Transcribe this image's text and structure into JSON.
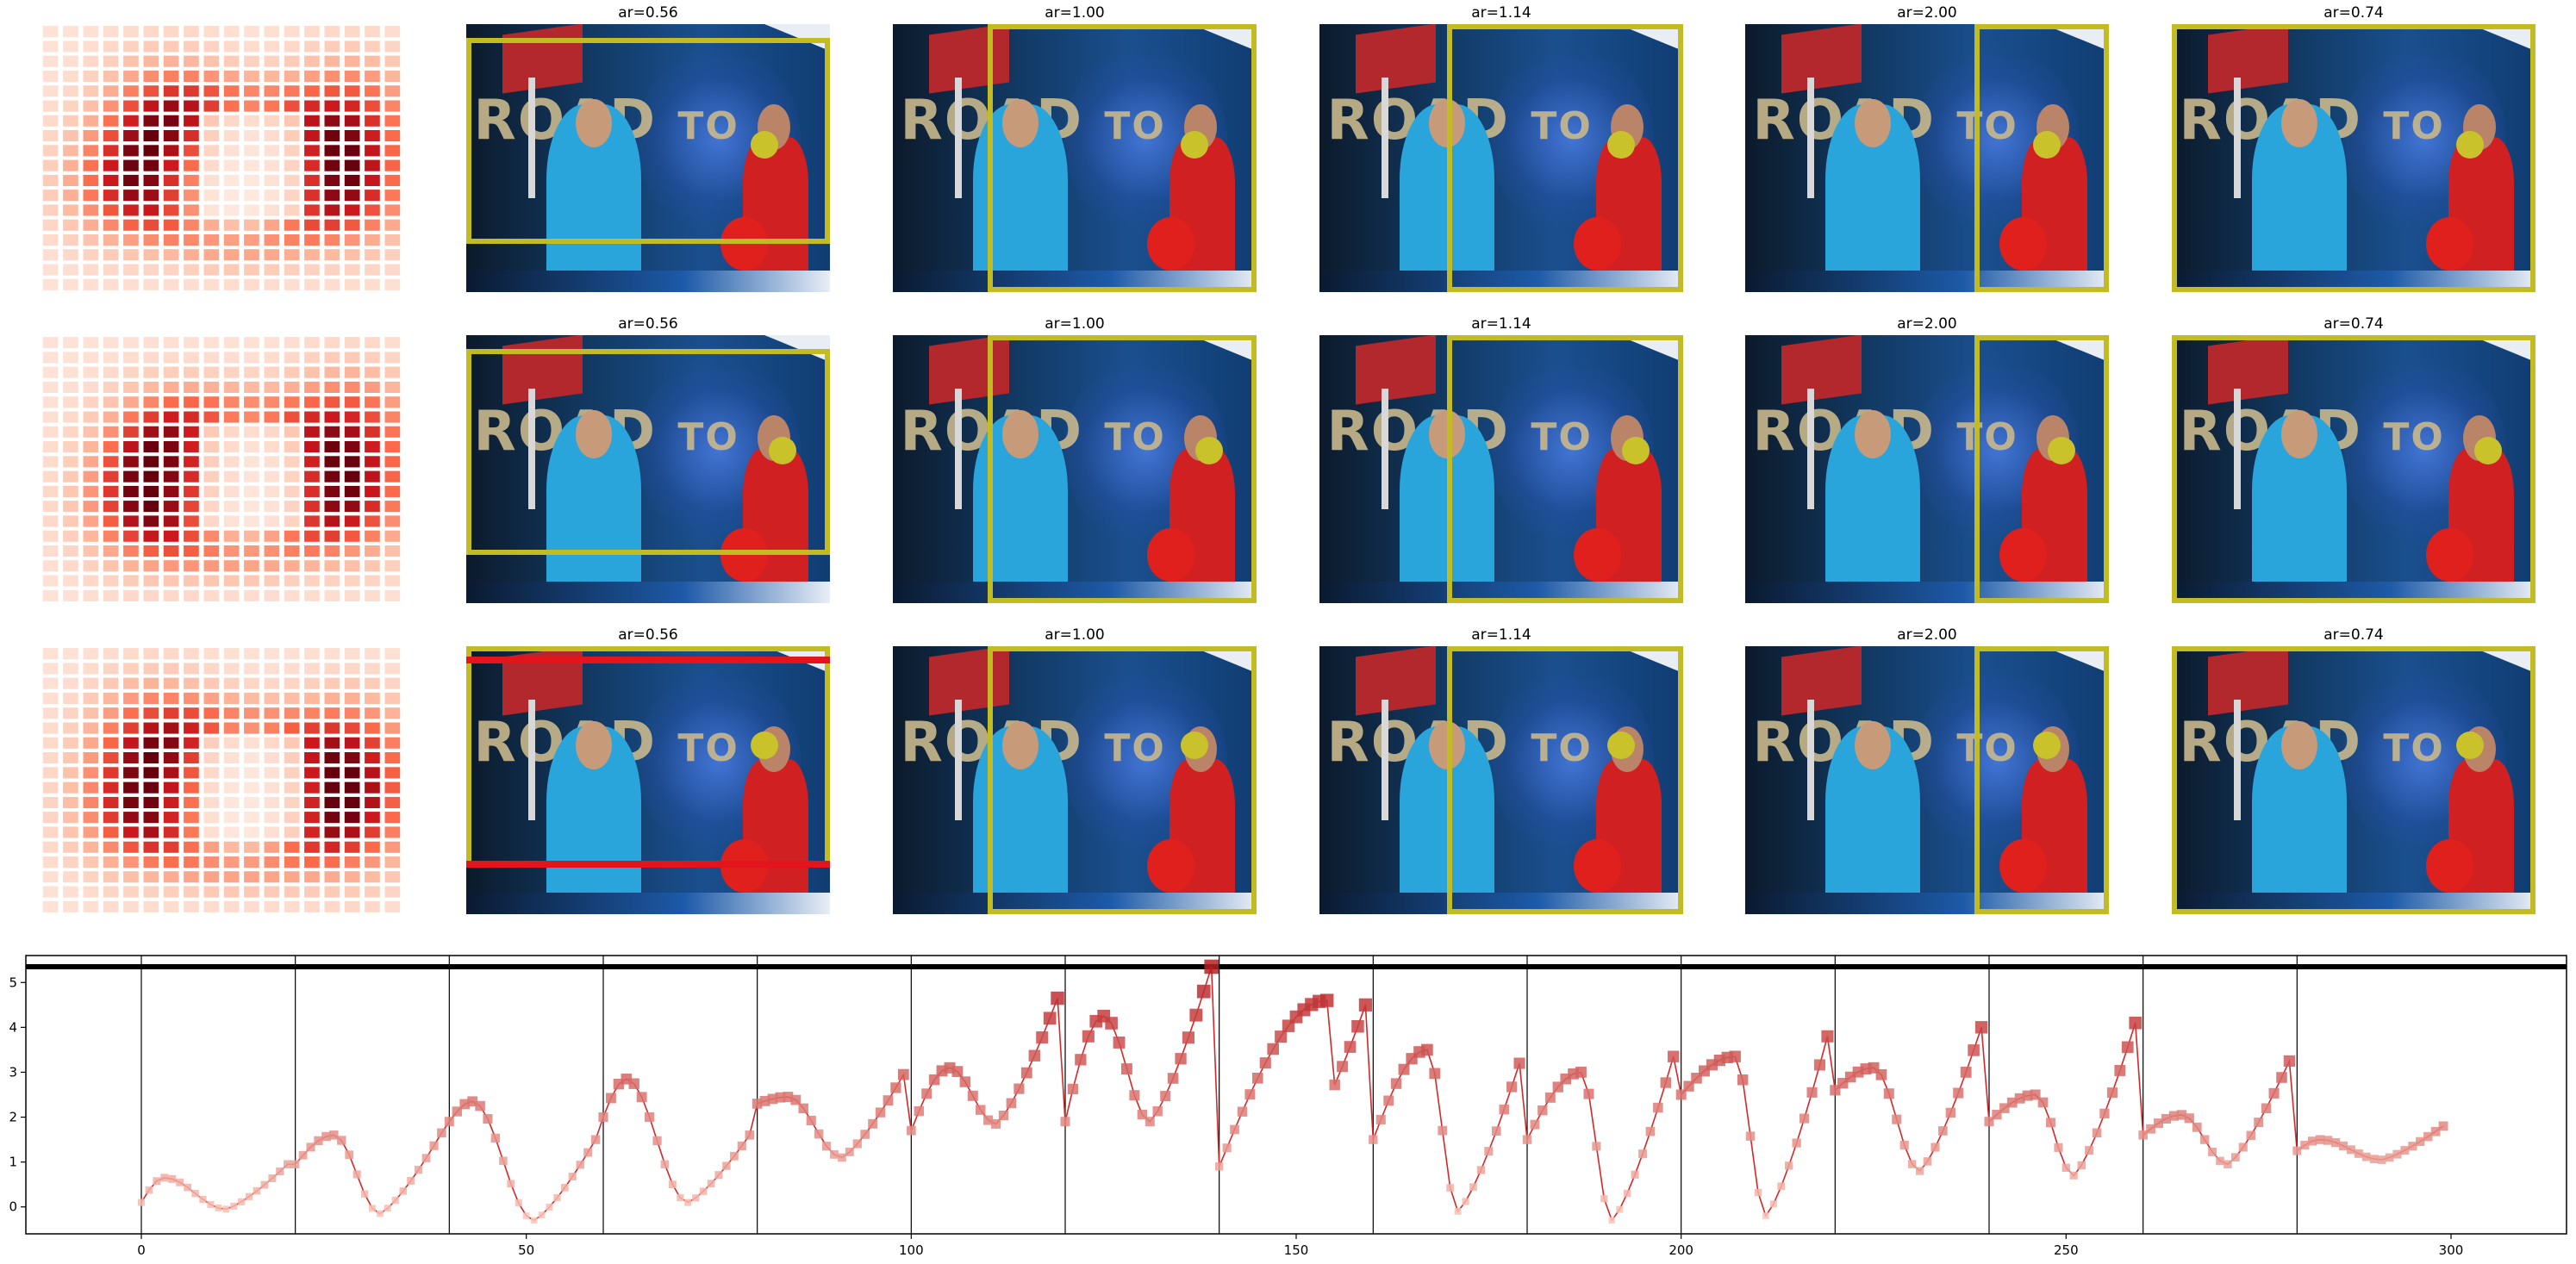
{
  "rows": [
    {
      "row_index": 0,
      "panels": [
        {
          "title": "ar=0.56",
          "crop": [
            0.0,
            0.05,
            1.0,
            0.82
          ],
          "subject": [
            0.82,
            0.45
          ],
          "bands": []
        },
        {
          "title": "ar=1.00",
          "crop": [
            0.26,
            0.0,
            1.0,
            1.0
          ],
          "subject": [
            0.83,
            0.45
          ],
          "bands": []
        },
        {
          "title": "ar=1.14",
          "crop": [
            0.35,
            0.0,
            1.0,
            1.0
          ],
          "subject": [
            0.83,
            0.45
          ],
          "bands": []
        },
        {
          "title": "ar=2.00",
          "crop": [
            0.63,
            0.0,
            1.0,
            1.0
          ],
          "subject": [
            0.83,
            0.45
          ],
          "bands": []
        },
        {
          "title": "ar=0.74",
          "crop": [
            0.0,
            0.0,
            1.0,
            1.0
          ],
          "subject": [
            0.82,
            0.45
          ],
          "bands": []
        }
      ]
    },
    {
      "row_index": 1,
      "panels": [
        {
          "title": "ar=0.56",
          "crop": [
            0.0,
            0.05,
            1.0,
            0.82
          ],
          "subject": [
            0.87,
            0.43
          ],
          "bands": []
        },
        {
          "title": "ar=1.00",
          "crop": [
            0.26,
            0.0,
            1.0,
            1.0
          ],
          "subject": [
            0.87,
            0.43
          ],
          "bands": []
        },
        {
          "title": "ar=1.14",
          "crop": [
            0.35,
            0.0,
            1.0,
            1.0
          ],
          "subject": [
            0.87,
            0.43
          ],
          "bands": []
        },
        {
          "title": "ar=2.00",
          "crop": [
            0.63,
            0.0,
            1.0,
            1.0
          ],
          "subject": [
            0.87,
            0.43
          ],
          "bands": []
        },
        {
          "title": "ar=0.74",
          "crop": [
            0.0,
            0.0,
            1.0,
            1.0
          ],
          "subject": [
            0.87,
            0.43
          ],
          "bands": []
        }
      ]
    },
    {
      "row_index": 2,
      "panels": [
        {
          "title": "ar=0.56",
          "crop": [
            0.0,
            0.0,
            1.0,
            0.82
          ],
          "subject": [
            0.82,
            0.37
          ],
          "bands": [
            0.04,
            0.8
          ]
        },
        {
          "title": "ar=1.00",
          "crop": [
            0.26,
            0.0,
            1.0,
            1.0
          ],
          "subject": [
            0.83,
            0.37
          ],
          "bands": []
        },
        {
          "title": "ar=1.14",
          "crop": [
            0.35,
            0.0,
            1.0,
            1.0
          ],
          "subject": [
            0.83,
            0.37
          ],
          "bands": []
        },
        {
          "title": "ar=2.00",
          "crop": [
            0.63,
            0.0,
            1.0,
            1.0
          ],
          "subject": [
            0.83,
            0.37
          ],
          "bands": []
        },
        {
          "title": "ar=0.74",
          "crop": [
            0.0,
            0.0,
            1.0,
            1.0
          ],
          "subject": [
            0.82,
            0.37
          ],
          "bands": []
        }
      ]
    }
  ],
  "heatmaps": [
    {
      "row_index": 0,
      "grid": [
        18,
        18
      ],
      "hot_spots": [
        [
          0.35,
          0.35
        ],
        [
          0.85,
          0.35
        ],
        [
          0.25,
          0.6
        ],
        [
          0.85,
          0.62
        ]
      ]
    },
    {
      "row_index": 1,
      "grid": [
        18,
        18
      ],
      "hot_spots": [
        [
          0.35,
          0.42
        ],
        [
          0.85,
          0.35
        ],
        [
          0.3,
          0.65
        ],
        [
          0.85,
          0.62
        ]
      ]
    },
    {
      "row_index": 2,
      "grid": [
        18,
        18
      ],
      "hot_spots": [
        [
          0.32,
          0.35
        ],
        [
          0.85,
          0.4
        ],
        [
          0.28,
          0.62
        ],
        [
          0.85,
          0.65
        ]
      ]
    }
  ],
  "chart_data": {
    "type": "line",
    "title": "",
    "xlabel": "",
    "ylabel": "",
    "xlim": [
      -15,
      315
    ],
    "ylim": [
      -0.6,
      5.6
    ],
    "xticks": [
      0,
      50,
      100,
      150,
      200,
      250,
      300
    ],
    "yticks": [
      0,
      1,
      2,
      3,
      4,
      5
    ],
    "grid": false,
    "vlines": [
      0,
      20,
      40,
      60,
      80,
      100,
      120,
      140,
      160,
      180,
      200,
      220,
      240,
      260,
      280
    ],
    "hline": 5.35,
    "colors": {
      "line": "#d62728",
      "low": "#fdd0c2",
      "high": "#b5161b",
      "hline": "#000000",
      "box": "#c2bb22",
      "dot": "#c9c22a",
      "band": "#e3141c"
    },
    "segments": [
      {
        "start": 0,
        "peak_pos": 3,
        "low": 0.1,
        "peak": 0.65,
        "min": -0.05,
        "tail": 0.95
      },
      {
        "start": 20,
        "peak_pos": 5,
        "low": 0.95,
        "peak": 1.6,
        "min": -0.15,
        "tail": 1.65
      },
      {
        "start": 40,
        "peak_pos": 3,
        "low": 1.9,
        "peak": 2.35,
        "min": -0.3,
        "tail": 1.5
      },
      {
        "start": 60,
        "peak_pos": 3,
        "low": 2.0,
        "peak": 2.85,
        "min": 0.1,
        "tail": 1.6
      },
      {
        "start": 80,
        "peak_pos": 4,
        "low": 2.3,
        "peak": 2.45,
        "min": 1.1,
        "tail": 2.95
      },
      {
        "start": 100,
        "peak_pos": 5,
        "low": 1.7,
        "peak": 3.1,
        "min": 1.85,
        "tail": 4.65
      },
      {
        "start": 120,
        "peak_pos": 5,
        "low": 1.9,
        "peak": 4.25,
        "min": 1.9,
        "tail": 5.35
      },
      {
        "start": 140,
        "peak_pos": 14,
        "low": 0.9,
        "peak": 4.6,
        "min": 1.5,
        "tail": 4.5
      },
      {
        "start": 160,
        "peak_pos": 7,
        "low": 1.5,
        "peak": 3.5,
        "min": -0.1,
        "tail": 3.2
      },
      {
        "start": 180,
        "peak_pos": 7,
        "low": 1.5,
        "peak": 3.0,
        "min": -0.3,
        "tail": 3.35
      },
      {
        "start": 200,
        "peak_pos": 7,
        "low": 2.5,
        "peak": 3.35,
        "min": -0.2,
        "tail": 3.8
      },
      {
        "start": 220,
        "peak_pos": 5,
        "low": 2.6,
        "peak": 3.1,
        "min": 0.8,
        "tail": 4.0
      },
      {
        "start": 240,
        "peak_pos": 6,
        "low": 1.9,
        "peak": 2.5,
        "min": 0.7,
        "tail": 4.1
      },
      {
        "start": 260,
        "peak_pos": 5,
        "low": 1.6,
        "peak": 2.05,
        "min": 0.95,
        "tail": 3.25
      },
      {
        "start": 280,
        "peak_pos": 3,
        "low": 1.25,
        "peak": 1.5,
        "min": 1.05,
        "tail": 1.8
      }
    ],
    "n_points": 300
  }
}
